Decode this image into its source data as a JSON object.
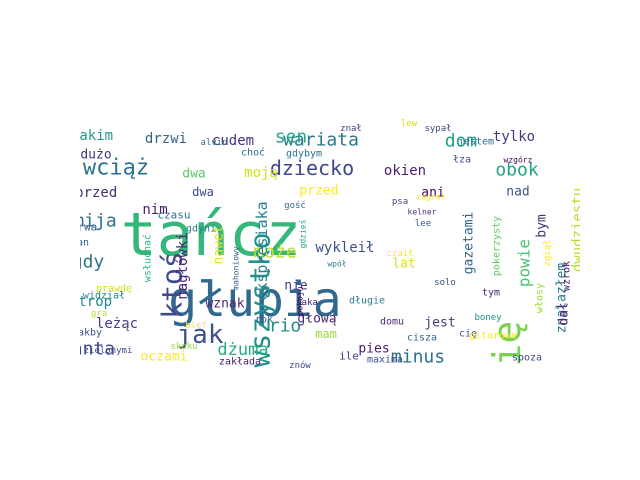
{
  "words": [
    {
      "text": "tańcz",
      "color": "#35b779"
    },
    {
      "text": "głupia",
      "color": "#31688e"
    },
    {
      "text": "się",
      "color": "#7ad151"
    },
    {
      "text": "wszystko",
      "color": "#21918c"
    },
    {
      "text": "ktoś",
      "color": "#3e4a89"
    },
    {
      "text": "jak",
      "color": "#3b528b"
    },
    {
      "text": "wciąż",
      "color": "#2c728e"
    },
    {
      "text": "dziecko",
      "color": "#3e4989"
    },
    {
      "text": "wariata",
      "color": "#2a788e"
    },
    {
      "text": "obok",
      "color": "#20a486"
    },
    {
      "text": "dom",
      "color": "#1fa187"
    },
    {
      "text": "sen",
      "color": "#22a884"
    },
    {
      "text": "może",
      "color": "#bddf26"
    },
    {
      "text": "rio",
      "color": "#228c8d"
    },
    {
      "text": "dżuma",
      "color": "#27ad81"
    },
    {
      "text": "minus",
      "color": "#2d708e"
    },
    {
      "text": "santa",
      "color": "#3f4788"
    },
    {
      "text": "mija",
      "color": "#2e6e8e"
    },
    {
      "text": "gdy",
      "color": "#2c738e"
    },
    {
      "text": "powie",
      "color": "#4ac16d"
    },
    {
      "text": "ekspresiaka",
      "color": "#26828e"
    },
    {
      "text": "tylko",
      "color": "#453781"
    },
    {
      "text": "cudem",
      "color": "#46327e"
    },
    {
      "text": "drzwi",
      "color": "#33638d"
    },
    {
      "text": "jakim",
      "color": "#1f9a8a"
    },
    {
      "text": "dużo",
      "color": "#46337e"
    },
    {
      "text": "moją",
      "color": "#d2e21b"
    },
    {
      "text": "okien",
      "color": "#481f70"
    },
    {
      "text": "dwa",
      "color": "#5cc863"
    },
    {
      "text": "przed",
      "color": "#fde725"
    },
    {
      "text": "ani",
      "color": "#440154"
    },
    {
      "text": "sprzed",
      "color": "#472f7d"
    },
    {
      "text": "nim",
      "color": "#482173"
    },
    {
      "text": "nagłówki",
      "color": "#482576"
    },
    {
      "text": "nawet",
      "color": "#e2e418"
    },
    {
      "text": "wykleił",
      "color": "#3b528b"
    },
    {
      "text": "lat",
      "color": "#d8e219"
    },
    {
      "text": "gazetami",
      "color": "#32658e"
    },
    {
      "text": "nad",
      "color": "#3a548c"
    },
    {
      "text": "bym",
      "color": "#46307e"
    },
    {
      "text": "dwudziestu",
      "color": "#b5de2b"
    },
    {
      "text": "znalazłem",
      "color": "#2a778e"
    },
    {
      "text": "dał",
      "color": "#481d6f"
    },
    {
      "text": "strop",
      "color": "#23898e"
    },
    {
      "text": "leżąc",
      "color": "#433e85"
    },
    {
      "text": "wznak",
      "color": "#482878"
    },
    {
      "text": "nie",
      "color": "#453882"
    },
    {
      "text": "głową",
      "color": "#482475"
    },
    {
      "text": "jest",
      "color": "#453781"
    },
    {
      "text": "mam",
      "color": "#9bd93c"
    },
    {
      "text": "pies",
      "color": "#481a6c"
    },
    {
      "text": "oczami",
      "color": "#fde725"
    },
    {
      "text": "czasu",
      "color": "#2c728e"
    },
    {
      "text": "gdyni",
      "color": "#287c8e"
    },
    {
      "text": "ścian",
      "color": "#34608d"
    },
    {
      "text": "trwa",
      "color": "#39568c"
    },
    {
      "text": "dwa",
      "color": "#3e4c8a"
    },
    {
      "text": "wsłuchać",
      "color": "#2fb47c"
    },
    {
      "text": "prawdę",
      "color": "#d5e21a"
    },
    {
      "text": "widział",
      "color": "#25858e"
    },
    {
      "text": "jakby",
      "color": "#3b528b"
    },
    {
      "text": "zielonymi",
      "color": "#3e4c8a"
    },
    {
      "text": "gra",
      "color": "#b0dd2f"
    },
    {
      "text": "skoku",
      "color": "#9dd93b"
    },
    {
      "text": "blef",
      "color": "#fde725"
    },
    {
      "text": "mahoniowy",
      "color": "#34618d"
    },
    {
      "text": "pokoju",
      "color": "#440154"
    },
    {
      "text": "gdzieś",
      "color": "#22a785"
    },
    {
      "text": "gość",
      "color": "#31688e"
    },
    {
      "text": "wpół",
      "color": "#277f8e"
    },
    {
      "text": "czaił",
      "color": "#fde725"
    },
    {
      "text": "długie",
      "color": "#277f8e"
    },
    {
      "text": "taka",
      "color": "#482173"
    },
    {
      "text": "rok",
      "color": "#33638d"
    },
    {
      "text": "domu",
      "color": "#472d7b"
    },
    {
      "text": "cię",
      "color": "#3c508b"
    },
    {
      "text": "cisza",
      "color": "#2f6b8e"
    },
    {
      "text": "ile",
      "color": "#453882"
    },
    {
      "text": "maxima",
      "color": "#3b518b"
    },
    {
      "text": "znów",
      "color": "#3e4a89"
    },
    {
      "text": "zakłada",
      "color": "#482071"
    },
    {
      "text": "gitarowe",
      "color": "#fde725"
    },
    {
      "text": "spoza",
      "color": "#3e4a89"
    },
    {
      "text": "boney",
      "color": "#20928c"
    },
    {
      "text": "tym",
      "color": "#482475"
    },
    {
      "text": "włosy",
      "color": "#a2da37"
    },
    {
      "text": "wzrok",
      "color": "#481467"
    },
    {
      "text": "zgiął",
      "color": "#fde725"
    },
    {
      "text": "pokerzysty",
      "color": "#5ec962"
    },
    {
      "text": "kelner",
      "color": "#472e7c"
    },
    {
      "text": "lee",
      "color": "#38588c"
    },
    {
      "text": "solo",
      "color": "#3b518b"
    },
    {
      "text": "psa",
      "color": "#3e4989"
    },
    {
      "text": "zagrał",
      "color": "#fde725"
    },
    {
      "text": "jestem",
      "color": "#31688e"
    },
    {
      "text": "gdybym",
      "color": "#2c728e"
    },
    {
      "text": "alvin",
      "color": "#2c728e"
    },
    {
      "text": "choć",
      "color": "#2e6e8e"
    },
    {
      "text": "znał",
      "color": "#433d84"
    },
    {
      "text": "lew",
      "color": "#d8e219"
    },
    {
      "text": "sypał",
      "color": "#3f4788"
    },
    {
      "text": "wzgórz",
      "color": "#440154"
    },
    {
      "text": "łza",
      "color": "#3b528b"
    }
  ]
}
